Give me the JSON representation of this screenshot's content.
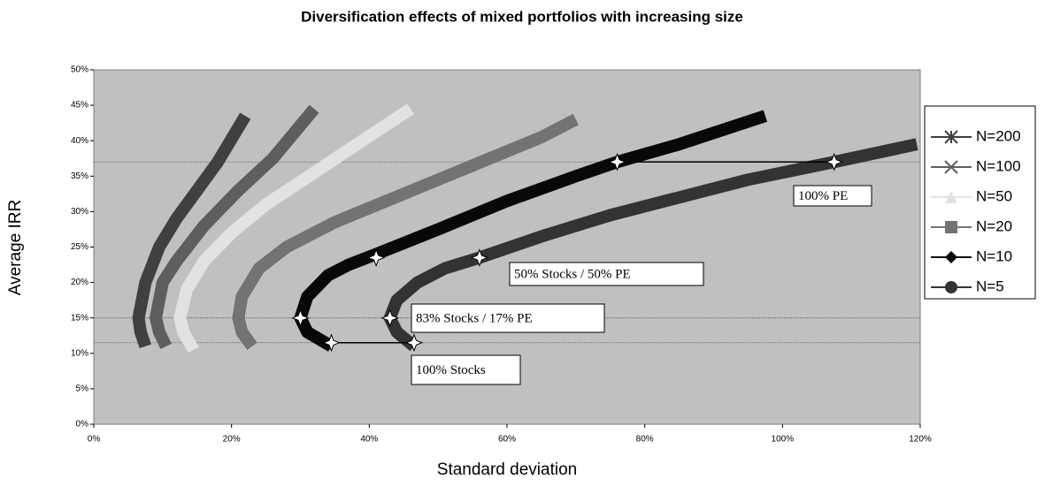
{
  "chart_data": {
    "type": "line",
    "title": "Diversification effects of mixed portfolios with increasing size",
    "x_label": "Standard deviation",
    "y_label": "Average IRR",
    "xlim": [
      0,
      120
    ],
    "ylim": [
      0,
      50
    ],
    "xticks": [
      {
        "value": 0,
        "label": "0%"
      },
      {
        "value": 20,
        "label": "20%"
      },
      {
        "value": 40,
        "label": "40%"
      },
      {
        "value": 60,
        "label": "60%"
      },
      {
        "value": 80,
        "label": "80%"
      },
      {
        "value": 100,
        "label": "100%"
      },
      {
        "value": 120,
        "label": "120%"
      }
    ],
    "yticks": [
      {
        "value": 0,
        "label": "0%"
      },
      {
        "value": 5,
        "label": "5%"
      },
      {
        "value": 10,
        "label": "10%"
      },
      {
        "value": 15,
        "label": "15%"
      },
      {
        "value": 20,
        "label": "20%"
      },
      {
        "value": 25,
        "label": "25%"
      },
      {
        "value": 30,
        "label": "30%"
      },
      {
        "value": 35,
        "label": "35%"
      },
      {
        "value": 40,
        "label": "40%"
      },
      {
        "value": 45,
        "label": "45%"
      },
      {
        "value": 50,
        "label": "50%"
      }
    ],
    "series": [
      {
        "name": "N=200",
        "color": "#404040",
        "marker": "star",
        "x": [
          7.5,
          6.8,
          6.5,
          7.5,
          9.5,
          12,
          15,
          18,
          22
        ],
        "values": [
          11,
          13,
          15,
          20,
          25,
          29,
          33,
          37,
          43.5
        ]
      },
      {
        "name": "N=100",
        "color": "#5e5e5e",
        "marker": "x",
        "x": [
          10.5,
          9.5,
          9,
          10,
          12,
          16,
          21,
          26,
          32
        ],
        "values": [
          11,
          13,
          15,
          20,
          23,
          28,
          33,
          37.5,
          44.5
        ]
      },
      {
        "name": "N=50",
        "color": "#e2e2e2",
        "marker": "triangle",
        "x": [
          14.5,
          13,
          12.5,
          13.5,
          16,
          20,
          25,
          32,
          39,
          46
        ],
        "values": [
          10.5,
          13,
          15,
          19,
          23,
          27,
          31,
          35.5,
          40,
          44.5
        ]
      },
      {
        "name": "N=20",
        "color": "#737373",
        "marker": "square",
        "x": [
          23,
          21.5,
          21,
          21.5,
          24,
          28,
          35,
          45,
          55,
          65,
          70
        ],
        "values": [
          11,
          13,
          15,
          18,
          22,
          25,
          28.5,
          32.5,
          36.5,
          40.5,
          43
        ]
      },
      {
        "name": "N=10",
        "color": "#080808",
        "marker": "diamond",
        "x": [
          34.5,
          31,
          30,
          31,
          34,
          37,
          41,
          50,
          60,
          70,
          76,
          85,
          97.5
        ],
        "values": [
          11,
          13,
          15,
          18,
          21,
          22.5,
          24,
          27.5,
          31.5,
          35,
          37,
          39.5,
          43.5
        ]
      },
      {
        "name": "N=5",
        "color": "#333333",
        "marker": "circle",
        "x": [
          46.5,
          44,
          43,
          44,
          47,
          51,
          56,
          65,
          75,
          85,
          95,
          107.5,
          119.5
        ],
        "values": [
          11,
          13,
          15,
          17.5,
          20,
          22,
          23.5,
          26.5,
          29.5,
          32,
          34.5,
          37,
          39.5
        ]
      }
    ],
    "hlines": [
      37,
      15,
      11.5
    ],
    "highlights": {
      "x": [
        34.5,
        46.5,
        30,
        43,
        41,
        56,
        76,
        107.5
      ],
      "values": [
        11.5,
        11.5,
        15,
        15,
        23.5,
        23.5,
        37,
        37
      ]
    },
    "annotations": [
      "100% PE",
      "50% Stocks / 50% PE",
      "83% Stocks / 17% PE",
      "100% Stocks"
    ]
  }
}
